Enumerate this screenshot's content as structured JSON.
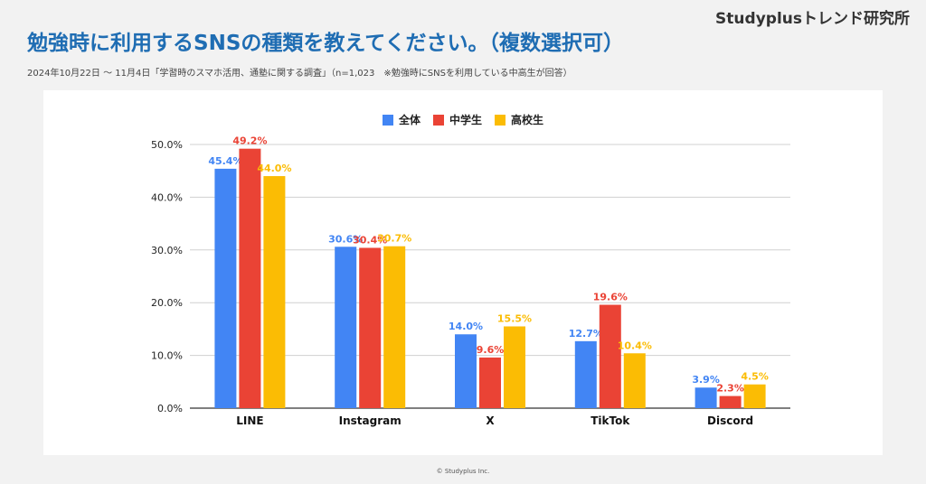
{
  "brand": "Studyplusトレンド研究所",
  "title": "勉強時に利用するSNSの種類を教えてください。（複数選択可）",
  "subtitle": "2024年10月22日 〜 11月4日「学習時のスマホ活用、通塾に関する調査」（n=1,023　※勉強時にSNSを利用している中高生が回答）",
  "copyright": "© Studyplus Inc.",
  "colors": {
    "all": "#4285f4",
    "junior": "#ea4335",
    "senior": "#fbbc04"
  },
  "chart_data": {
    "type": "bar",
    "title": "",
    "xlabel": "",
    "ylabel": "",
    "categories": [
      "LINE",
      "Instagram",
      "X",
      "TikTok",
      "Discord"
    ],
    "series": [
      {
        "name": "全体",
        "color": "#4285f4",
        "values": [
          45.4,
          30.6,
          14.0,
          12.7,
          3.9
        ],
        "labels": [
          "45.4%",
          "30.6%",
          "14.0%",
          "12.7%",
          "3.9%"
        ]
      },
      {
        "name": "中学生",
        "color": "#ea4335",
        "values": [
          49.2,
          30.4,
          9.6,
          19.6,
          2.3
        ],
        "labels": [
          "49.2%",
          "30.4%",
          "9.6%",
          "19.6%",
          "2.3%"
        ]
      },
      {
        "name": "高校生",
        "color": "#fbbc04",
        "values": [
          44.0,
          30.7,
          15.5,
          10.4,
          4.5
        ],
        "labels": [
          "44.0%",
          "30.7%",
          "15.5%",
          "10.4%",
          "4.5%"
        ]
      }
    ],
    "ylim": [
      0,
      50
    ],
    "yticks": [
      "0.0%",
      "10.0%",
      "20.0%",
      "30.0%",
      "40.0%",
      "50.0%"
    ],
    "grid": true,
    "legend": "top-center"
  }
}
